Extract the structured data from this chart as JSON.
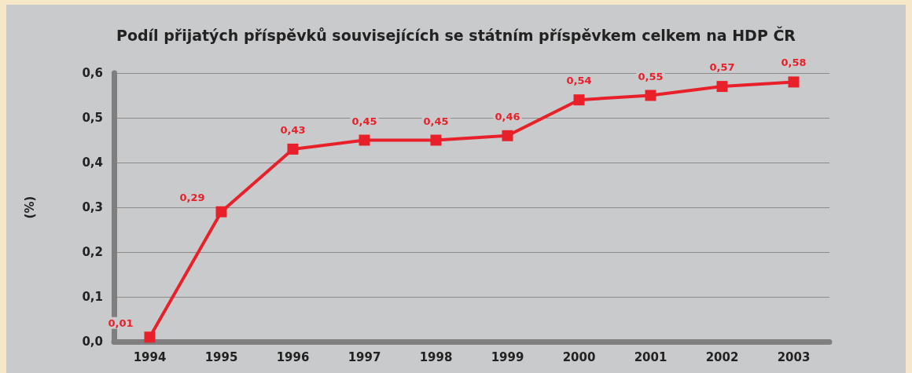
{
  "chart_data": {
    "type": "line",
    "title": "Podíl přijatých příspěvků souvisejících se státním příspěvkem celkem na HDP ČR",
    "ylabel": "(%)",
    "categories": [
      "1994",
      "1995",
      "1996",
      "1997",
      "1998",
      "1999",
      "2000",
      "2001",
      "2002",
      "2003"
    ],
    "series": [
      {
        "color": "#e8202a",
        "values": [
          0.01,
          0.29,
          0.43,
          0.45,
          0.45,
          0.46,
          0.54,
          0.55,
          0.57,
          0.58
        ],
        "value_labels": [
          "0,01",
          "0,29",
          "0,43",
          "0,45",
          "0,45",
          "0,46",
          "0,54",
          "0,55",
          "0,57",
          "0,58"
        ]
      }
    ],
    "ylim": [
      0,
      0.6
    ],
    "yticks": [
      {
        "value": 0,
        "label": "0,0"
      },
      {
        "value": 0.1,
        "label": "0,1"
      },
      {
        "value": 0.2,
        "label": "0,2"
      },
      {
        "value": 0.3,
        "label": "0,3"
      },
      {
        "value": 0.4,
        "label": "0,4"
      },
      {
        "value": 0.5,
        "label": "0,5"
      },
      {
        "value": 0.6,
        "label": "0,6"
      }
    ],
    "grid": "y",
    "marker": "square",
    "line_style": "solid"
  }
}
